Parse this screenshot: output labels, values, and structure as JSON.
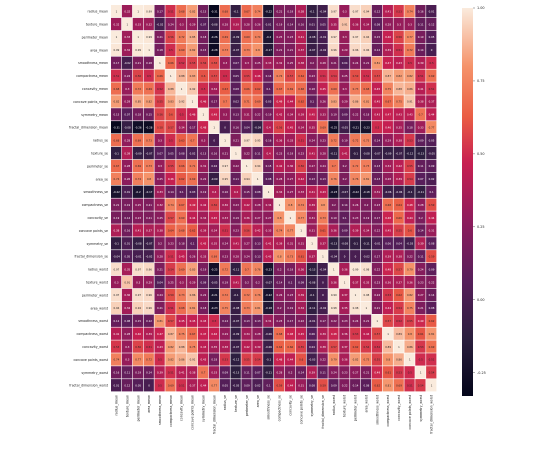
{
  "chart_data": {
    "type": "heatmap",
    "title": "",
    "xlabel": "",
    "ylabel": "",
    "variables": [
      "radius_mean",
      "texture_mean",
      "perimeter_mean",
      "area_mean",
      "smoothness_mean",
      "compactness_mean",
      "concavity_mean",
      "concave points_mean",
      "symmetry_mean",
      "fractal_dimension_mean",
      "radius_se",
      "texture_se",
      "perimeter_se",
      "area_se",
      "smoothness_se",
      "compactness_se",
      "concavity_se",
      "concave points_se",
      "symmetry_se",
      "fractal_dimension_se",
      "radius_worst",
      "texture_worst",
      "perimeter_worst",
      "area_worst",
      "smoothness_worst",
      "compactness_worst",
      "concavity_worst",
      "concave points_worst",
      "symmetry_worst",
      "fractal_dimension_worst"
    ],
    "values": [
      [
        1,
        0.32,
        1,
        0.99,
        0.17,
        0.51,
        0.68,
        0.82,
        0.15,
        -0.31,
        0.68,
        -0.1,
        0.67,
        0.74,
        -0.22,
        0.21,
        0.19,
        0.38,
        -0.1,
        -0.04,
        0.97,
        0.3,
        0.97,
        0.94,
        0.12,
        0.41,
        0.53,
        0.74,
        0.16,
        0.01
      ],
      [
        0.32,
        1,
        0.33,
        0.32,
        -0.02,
        0.24,
        0.3,
        0.29,
        0.07,
        -0.08,
        0.28,
        0.39,
        0.28,
        0.26,
        0.01,
        0.19,
        0.14,
        0.16,
        0.01,
        0.05,
        0.35,
        0.91,
        0.36,
        0.34,
        0.08,
        0.28,
        0.3,
        0.3,
        0.11,
        0.12
      ],
      [
        1,
        0.33,
        1,
        0.99,
        0.21,
        0.56,
        0.72,
        0.85,
        0.18,
        -0.26,
        0.69,
        -0.09,
        0.69,
        0.74,
        -0.2,
        0.25,
        0.23,
        0.41,
        -0.08,
        -0.01,
        0.97,
        0.3,
        0.97,
        0.94,
        0.15,
        0.46,
        0.56,
        0.77,
        0.19,
        0.05
      ],
      [
        0.99,
        0.32,
        0.99,
        1,
        0.18,
        0.5,
        0.69,
        0.82,
        0.15,
        -0.28,
        0.73,
        -0.07,
        0.73,
        0.8,
        -0.17,
        0.21,
        0.21,
        0.37,
        -0.07,
        -0.02,
        0.96,
        0.29,
        0.96,
        0.96,
        0.12,
        0.39,
        0.51,
        0.72,
        0.14,
        0
      ],
      [
        0.17,
        -0.02,
        0.21,
        0.18,
        1,
        0.66,
        0.52,
        0.55,
        0.56,
        0.58,
        0.3,
        0.07,
        0.3,
        0.25,
        0.33,
        0.32,
        0.25,
        0.38,
        0.2,
        0.28,
        0.21,
        0.04,
        0.24,
        0.21,
        0.81,
        0.47,
        0.43,
        0.5,
        0.39,
        0.5
      ],
      [
        0.51,
        0.24,
        0.56,
        0.5,
        0.66,
        1,
        0.88,
        0.83,
        0.6,
        0.57,
        0.5,
        0.05,
        0.55,
        0.46,
        0.14,
        0.74,
        0.57,
        0.64,
        0.23,
        0.51,
        0.54,
        0.25,
        0.59,
        0.51,
        0.57,
        0.87,
        0.82,
        0.82,
        0.51,
        0.69
      ],
      [
        0.68,
        0.3,
        0.72,
        0.69,
        0.52,
        0.88,
        1,
        0.92,
        0.5,
        0.34,
        0.63,
        0.08,
        0.66,
        0.62,
        0.1,
        0.67,
        0.69,
        0.68,
        0.18,
        0.45,
        0.69,
        0.3,
        0.73,
        0.68,
        0.45,
        0.75,
        0.88,
        0.86,
        0.41,
        0.51
      ],
      [
        0.82,
        0.29,
        0.85,
        0.82,
        0.55,
        0.83,
        0.92,
        1,
        0.46,
        0.17,
        0.7,
        0.02,
        0.71,
        0.69,
        0.03,
        0.49,
        0.44,
        0.62,
        0.1,
        0.26,
        0.83,
        0.29,
        0.86,
        0.81,
        0.45,
        0.67,
        0.75,
        0.91,
        0.38,
        0.37
      ],
      [
        0.15,
        0.07,
        0.18,
        0.15,
        0.56,
        0.6,
        0.5,
        0.46,
        1,
        0.48,
        0.3,
        0.13,
        0.31,
        0.22,
        0.19,
        0.42,
        0.34,
        0.39,
        0.45,
        0.33,
        0.19,
        0.09,
        0.22,
        0.18,
        0.43,
        0.47,
        0.43,
        0.43,
        0.7,
        0.44
      ],
      [
        -0.31,
        -0.08,
        -0.26,
        -0.28,
        0.58,
        0.57,
        0.34,
        0.17,
        0.48,
        1,
        0,
        0.16,
        0.04,
        -0.09,
        0.4,
        0.56,
        0.45,
        0.34,
        0.35,
        0.69,
        -0.25,
        -0.05,
        -0.21,
        -0.23,
        0.5,
        0.46,
        0.35,
        0.18,
        0.33,
        0.77
      ],
      [
        0.68,
        0.28,
        0.69,
        0.73,
        0.3,
        0.5,
        0.63,
        0.7,
        0.3,
        0,
        1,
        0.21,
        0.97,
        0.95,
        0.16,
        0.36,
        0.33,
        0.51,
        0.24,
        0.23,
        0.72,
        0.19,
        0.72,
        0.75,
        0.14,
        0.29,
        0.38,
        0.53,
        0.09,
        0.05
      ],
      [
        -0.1,
        0.39,
        -0.09,
        -0.07,
        0.07,
        0.05,
        0.08,
        0.02,
        0.13,
        0.16,
        0.21,
        1,
        0.22,
        0.11,
        0.4,
        0.23,
        0.19,
        0.23,
        0.41,
        0.28,
        -0.11,
        0.41,
        -0.1,
        -0.08,
        -0.07,
        -0.09,
        -0.07,
        -0.12,
        -0.13,
        -0.05
      ],
      [
        0.67,
        0.28,
        0.69,
        0.73,
        0.3,
        0.55,
        0.66,
        0.71,
        0.31,
        0.04,
        0.97,
        0.22,
        1,
        0.94,
        0.15,
        0.42,
        0.36,
        0.56,
        0.27,
        0.24,
        0.7,
        0.2,
        0.72,
        0.73,
        0.13,
        0.34,
        0.42,
        0.55,
        0.11,
        0.09
      ],
      [
        0.74,
        0.26,
        0.74,
        0.8,
        0.25,
        0.46,
        0.62,
        0.69,
        0.22,
        -0.09,
        0.95,
        0.11,
        0.94,
        1,
        0.08,
        0.28,
        0.27,
        0.42,
        0.13,
        0.13,
        0.76,
        0.2,
        0.76,
        0.81,
        0.13,
        0.28,
        0.39,
        0.54,
        0.07,
        0.02
      ],
      [
        -0.22,
        0.01,
        -0.2,
        -0.17,
        0.33,
        0.14,
        0.1,
        0.03,
        0.19,
        0.4,
        0.16,
        0.4,
        0.15,
        0.08,
        1,
        0.34,
        0.27,
        0.33,
        0.41,
        0.43,
        -0.23,
        -0.07,
        -0.22,
        -0.18,
        0.31,
        -0.06,
        -0.06,
        -0.1,
        -0.11,
        0.1
      ],
      [
        0.21,
        0.19,
        0.25,
        0.21,
        0.32,
        0.74,
        0.67,
        0.49,
        0.42,
        0.56,
        0.36,
        0.23,
        0.42,
        0.28,
        0.34,
        1,
        0.8,
        0.74,
        0.39,
        0.8,
        0.2,
        0.14,
        0.26,
        0.2,
        0.23,
        0.68,
        0.64,
        0.48,
        0.28,
        0.59
      ],
      [
        0.19,
        0.14,
        0.23,
        0.21,
        0.25,
        0.57,
        0.69,
        0.44,
        0.34,
        0.45,
        0.33,
        0.19,
        0.36,
        0.27,
        0.27,
        0.8,
        1,
        0.77,
        0.31,
        0.73,
        0.19,
        0.1,
        0.23,
        0.19,
        0.17,
        0.48,
        0.66,
        0.44,
        0.2,
        0.44
      ],
      [
        0.38,
        0.16,
        0.41,
        0.37,
        0.38,
        0.64,
        0.68,
        0.62,
        0.39,
        0.34,
        0.51,
        0.23,
        0.56,
        0.42,
        0.33,
        0.74,
        0.77,
        1,
        0.31,
        0.61,
        0.36,
        0.09,
        0.39,
        0.34,
        0.22,
        0.45,
        0.55,
        0.6,
        0.14,
        0.31
      ],
      [
        -0.1,
        0.01,
        -0.08,
        -0.07,
        0.2,
        0.23,
        0.18,
        0.1,
        0.45,
        0.35,
        0.24,
        0.41,
        0.27,
        0.13,
        0.41,
        0.39,
        0.31,
        0.31,
        1,
        0.37,
        -0.13,
        -0.08,
        -0.1,
        -0.11,
        -0.01,
        0.06,
        0.04,
        -0.03,
        0.39,
        0.08
      ],
      [
        -0.04,
        0.05,
        -0.01,
        -0.02,
        0.28,
        0.51,
        0.45,
        0.26,
        0.33,
        0.69,
        0.23,
        0.28,
        0.24,
        0.13,
        0.43,
        0.8,
        0.73,
        0.61,
        0.37,
        1,
        -0.04,
        -0.0,
        -0.0,
        -0.02,
        0.17,
        0.39,
        0.38,
        0.22,
        0.11,
        0.59
      ],
      [
        0.97,
        0.35,
        0.97,
        0.96,
        0.21,
        0.54,
        0.69,
        0.83,
        0.19,
        -0.25,
        0.72,
        -0.11,
        0.7,
        0.76,
        -0.23,
        0.2,
        0.19,
        0.36,
        -0.13,
        -0.04,
        1,
        0.36,
        0.99,
        0.98,
        0.22,
        0.48,
        0.57,
        0.79,
        0.24,
        0.09
      ],
      [
        0.3,
        0.91,
        0.3,
        0.29,
        0.04,
        0.25,
        0.3,
        0.29,
        0.09,
        -0.05,
        0.19,
        0.41,
        0.2,
        0.2,
        -0.07,
        0.14,
        0.1,
        0.09,
        -0.08,
        -0.0,
        0.36,
        1,
        0.37,
        0.35,
        0.23,
        0.36,
        0.37,
        0.36,
        0.23,
        0.22
      ],
      [
        0.97,
        0.36,
        0.97,
        0.96,
        0.24,
        0.59,
        0.73,
        0.86,
        0.22,
        -0.21,
        0.72,
        -0.1,
        0.72,
        0.76,
        -0.22,
        0.26,
        0.23,
        0.39,
        -0.1,
        -0.0,
        0.99,
        0.37,
        1,
        0.98,
        0.24,
        0.53,
        0.62,
        0.82,
        0.27,
        0.14
      ],
      [
        0.94,
        0.34,
        0.94,
        0.96,
        0.21,
        0.51,
        0.68,
        0.81,
        0.18,
        -0.23,
        0.75,
        -0.08,
        0.73,
        0.81,
        -0.18,
        0.2,
        0.19,
        0.34,
        -0.11,
        -0.02,
        0.98,
        0.35,
        0.98,
        1,
        0.21,
        0.44,
        0.54,
        0.75,
        0.21,
        0.08
      ],
      [
        0.12,
        0.08,
        0.15,
        0.12,
        0.81,
        0.57,
        0.45,
        0.45,
        0.43,
        0.5,
        0.14,
        -0.07,
        0.13,
        0.13,
        0.31,
        0.23,
        0.17,
        0.22,
        -0.01,
        0.17,
        0.22,
        0.23,
        0.24,
        0.21,
        1,
        0.57,
        0.52,
        0.55,
        0.49,
        0.62
      ],
      [
        0.41,
        0.28,
        0.46,
        0.39,
        0.47,
        0.87,
        0.75,
        0.67,
        0.47,
        0.46,
        0.29,
        -0.09,
        0.34,
        0.28,
        -0.06,
        0.68,
        0.48,
        0.45,
        0.06,
        0.39,
        0.48,
        0.36,
        0.53,
        0.44,
        0.57,
        1,
        0.89,
        0.8,
        0.61,
        0.81
      ],
      [
        0.53,
        0.3,
        0.56,
        0.51,
        0.43,
        0.82,
        0.88,
        0.75,
        0.43,
        0.35,
        0.38,
        -0.07,
        0.42,
        0.39,
        -0.06,
        0.64,
        0.66,
        0.55,
        0.04,
        0.38,
        0.57,
        0.37,
        0.62,
        0.54,
        0.52,
        0.89,
        1,
        0.86,
        0.53,
        0.69
      ],
      [
        0.74,
        0.3,
        0.77,
        0.72,
        0.5,
        0.82,
        0.86,
        0.91,
        0.43,
        0.18,
        0.53,
        -0.12,
        0.55,
        0.54,
        -0.1,
        0.48,
        0.44,
        0.6,
        -0.03,
        0.22,
        0.79,
        0.36,
        0.82,
        0.75,
        0.55,
        0.8,
        0.86,
        1,
        0.5,
        0.51
      ],
      [
        0.16,
        0.11,
        0.19,
        0.14,
        0.39,
        0.51,
        0.41,
        0.38,
        0.7,
        0.33,
        0.09,
        -0.13,
        0.11,
        0.07,
        -0.11,
        0.28,
        0.2,
        0.14,
        0.39,
        0.11,
        0.24,
        0.23,
        0.27,
        0.21,
        0.49,
        0.61,
        0.53,
        0.5,
        1,
        0.54
      ],
      [
        0.01,
        0.12,
        0.05,
        0,
        0.5,
        0.69,
        0.51,
        0.37,
        0.44,
        0.77,
        0.05,
        -0.05,
        0.09,
        0.02,
        0.1,
        0.59,
        0.44,
        0.31,
        0.08,
        0.59,
        0.09,
        0.22,
        0.14,
        0.08,
        0.62,
        0.81,
        0.69,
        0.51,
        0.54,
        1
      ]
    ],
    "colorbar": {
      "min": -0.33,
      "max": 1.0,
      "ticks": [
        1.0,
        0.75,
        0.5,
        0.25,
        0.0,
        -0.25
      ]
    },
    "colormap": "rocket",
    "legend": "colorbar-right"
  }
}
